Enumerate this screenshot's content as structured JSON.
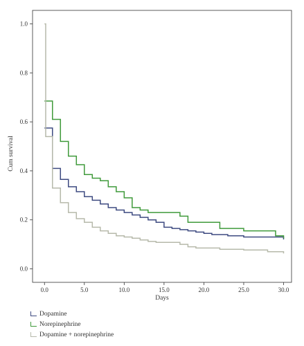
{
  "chart_data": {
    "type": "line",
    "step": true,
    "title": "",
    "xlabel": "Days",
    "ylabel": "Cum survival",
    "xlim": [
      -1.5,
      31
    ],
    "ylim": [
      -0.055,
      1.055
    ],
    "xticks": [
      0.0,
      5.0,
      10.0,
      15.0,
      20.0,
      25.0,
      30.0
    ],
    "xtick_labels": [
      "0.0",
      "5.0",
      "10.0",
      "15.0",
      "20.0",
      "25.0",
      "30.0"
    ],
    "yticks": [
      0.0,
      0.2,
      0.4,
      0.6,
      0.8,
      1.0
    ],
    "ytick_labels": [
      "0.0",
      "0.2",
      "0.4",
      "0.6",
      "0.8",
      "1.0"
    ],
    "grid": false,
    "legend_position": "bottom-left",
    "series": [
      {
        "name": "Dopamine",
        "color": "#3d4a80",
        "points": [
          [
            0,
            0.575
          ],
          [
            1,
            0.41
          ],
          [
            2,
            0.365
          ],
          [
            3,
            0.335
          ],
          [
            4,
            0.315
          ],
          [
            5,
            0.295
          ],
          [
            6,
            0.28
          ],
          [
            7,
            0.265
          ],
          [
            8,
            0.25
          ],
          [
            9,
            0.24
          ],
          [
            10,
            0.23
          ],
          [
            11,
            0.22
          ],
          [
            12,
            0.21
          ],
          [
            13,
            0.2
          ],
          [
            14,
            0.19
          ],
          [
            15,
            0.17
          ],
          [
            16,
            0.165
          ],
          [
            17,
            0.16
          ],
          [
            18,
            0.155
          ],
          [
            19,
            0.15
          ],
          [
            20,
            0.145
          ],
          [
            21,
            0.14
          ],
          [
            23,
            0.135
          ],
          [
            25,
            0.13
          ],
          [
            30,
            0.12
          ]
        ]
      },
      {
        "name": "Norepinephrine",
        "color": "#3f9a3a",
        "points": [
          [
            0,
            0.685
          ],
          [
            1,
            0.61
          ],
          [
            2,
            0.52
          ],
          [
            3,
            0.46
          ],
          [
            4,
            0.425
          ],
          [
            5,
            0.385
          ],
          [
            6,
            0.37
          ],
          [
            7,
            0.36
          ],
          [
            8,
            0.335
          ],
          [
            9,
            0.315
          ],
          [
            10,
            0.29
          ],
          [
            11,
            0.25
          ],
          [
            12,
            0.24
          ],
          [
            13,
            0.23
          ],
          [
            17,
            0.215
          ],
          [
            18,
            0.19
          ],
          [
            22,
            0.165
          ],
          [
            25,
            0.155
          ],
          [
            29,
            0.135
          ],
          [
            30,
            0.125
          ]
        ]
      },
      {
        "name": "Dopamine + norepinephrine",
        "color": "#b6b9aa",
        "points": [
          [
            0,
            1.0
          ],
          [
            0.15,
            0.54
          ],
          [
            1,
            0.33
          ],
          [
            2,
            0.27
          ],
          [
            3,
            0.23
          ],
          [
            4,
            0.205
          ],
          [
            5,
            0.19
          ],
          [
            6,
            0.17
          ],
          [
            7,
            0.155
          ],
          [
            8,
            0.145
          ],
          [
            9,
            0.135
          ],
          [
            10,
            0.13
          ],
          [
            11,
            0.125
          ],
          [
            12,
            0.118
          ],
          [
            13,
            0.112
          ],
          [
            14,
            0.108
          ],
          [
            17,
            0.1
          ],
          [
            18,
            0.09
          ],
          [
            19,
            0.085
          ],
          [
            22,
            0.08
          ],
          [
            25,
            0.077
          ],
          [
            28,
            0.07
          ],
          [
            30,
            0.063
          ]
        ]
      }
    ]
  }
}
